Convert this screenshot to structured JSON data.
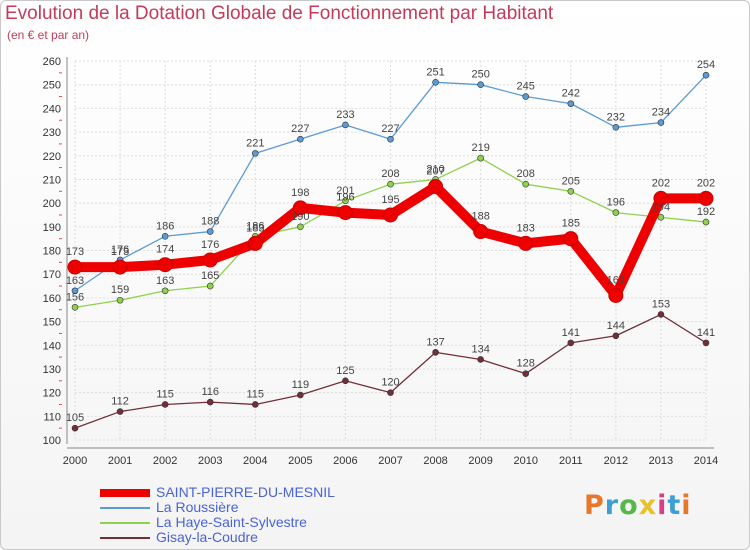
{
  "header": {
    "title": "Evolution de la Dotation Globale de Fonctionnement par Habitant",
    "subtitle": "(en € et par an)"
  },
  "logo": {
    "text": "Proxiti",
    "colors": [
      "#e8762b",
      "#3d9fd6",
      "#56b847",
      "#e8c12b",
      "#d63d8a",
      "#3d9fd6",
      "#e8762b"
    ]
  },
  "chart_data": {
    "type": "line",
    "x": [
      "2000",
      "2001",
      "2002",
      "2003",
      "2004",
      "2005",
      "2006",
      "2007",
      "2008",
      "2009",
      "2010",
      "2011",
      "2012",
      "2013",
      "2014"
    ],
    "ylim": [
      100,
      260
    ],
    "yticks": [
      100,
      110,
      120,
      130,
      140,
      150,
      160,
      170,
      180,
      190,
      200,
      210,
      220,
      230,
      240,
      250,
      260
    ],
    "grid": true,
    "legend_position": "bottom-left",
    "series": [
      {
        "name": "SAINT-PIERRE-DU-MESNIL",
        "color": "#ee0000",
        "values": [
          173,
          173,
          174,
          176,
          183,
          198,
          196,
          195,
          207,
          188,
          183,
          185,
          161,
          202,
          202
        ]
      },
      {
        "name": "La Roussière",
        "color": "#5b9bd5",
        "values": [
          163,
          176,
          186,
          188,
          221,
          227,
          233,
          227,
          251,
          250,
          245,
          242,
          232,
          234,
          254
        ]
      },
      {
        "name": "La Haye-Saint-Sylvestre",
        "color": "#8fd14f",
        "values": [
          156,
          159,
          163,
          165,
          186,
          190,
          201,
          208,
          210,
          219,
          208,
          205,
          196,
          194,
          192
        ]
      },
      {
        "name": "Gisay-la-Coudre",
        "color": "#722f37",
        "values": [
          105,
          112,
          115,
          116,
          115,
          119,
          125,
          120,
          137,
          134,
          128,
          141,
          144,
          153,
          141
        ]
      }
    ]
  }
}
